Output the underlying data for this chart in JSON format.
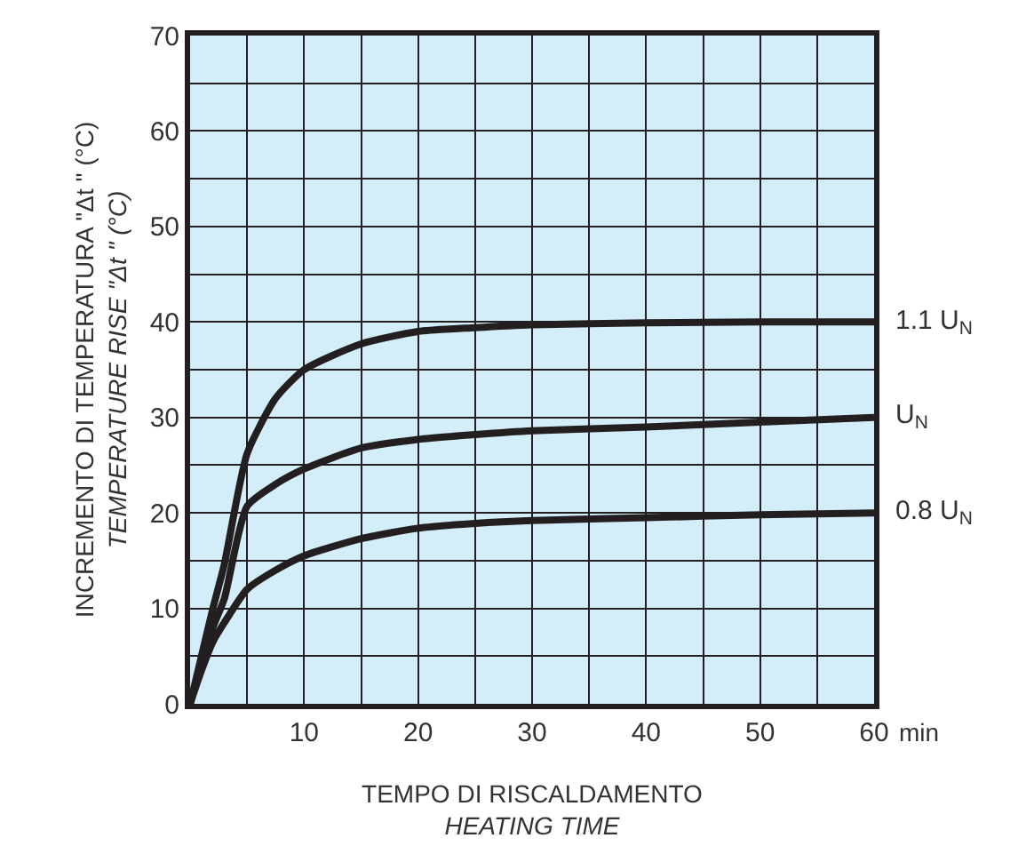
{
  "chart_data": {
    "type": "line",
    "xlabel": "TEMPO DI RISCALDAMENTO\nHEATING TIME",
    "ylabel": "INCREMENTO DI TEMPERATURA \"Δt \" (°C)\nTEMPERATURE RISE \"Δt \" (°C)",
    "x": [
      0,
      1,
      2,
      3,
      5,
      7.5,
      10,
      15,
      20,
      25,
      30,
      40,
      50,
      60
    ],
    "series": [
      {
        "name": "1.1 U$_{N}$",
        "color": "#231f20",
        "values": [
          0,
          5,
          10,
          14.6,
          26.2,
          32,
          35,
          37.7,
          39,
          39.4,
          39.7,
          39.9,
          40,
          40
        ]
      },
      {
        "name": "U$_{N}$",
        "color": "#231f20",
        "values": [
          0,
          4,
          8,
          11,
          20.7,
          23,
          24.6,
          26.8,
          27.7,
          28.2,
          28.6,
          29,
          29.5,
          30
        ]
      },
      {
        "name": "0.8 U$_{N}$",
        "color": "#231f20",
        "values": [
          0,
          3.5,
          6.5,
          8.5,
          12,
          14,
          15.5,
          17.3,
          18.4,
          18.9,
          19.2,
          19.5,
          19.8,
          20
        ]
      }
    ],
    "xlim": [
      0,
      60
    ],
    "xticks": [
      {
        "value": 0,
        "label": null
      },
      {
        "value": 5,
        "label": null
      },
      10,
      {
        "value": 15,
        "label": null
      },
      20,
      {
        "value": 25,
        "label": null
      },
      30,
      {
        "value": 35,
        "label": null
      },
      40,
      {
        "value": 45,
        "label": null
      },
      50,
      {
        "value": 55,
        "label": null
      },
      60
    ],
    "ylim": [
      0,
      70
    ],
    "yticks": [
      0,
      {
        "value": 5,
        "label": null
      },
      10,
      {
        "value": 15,
        "label": null
      },
      20,
      {
        "value": 25,
        "label": null
      },
      30,
      {
        "value": 35,
        "label": null
      },
      40,
      {
        "value": 45,
        "label": null
      },
      50,
      {
        "value": 55,
        "label": null
      },
      60,
      {
        "value": 65,
        "label": null
      },
      70
    ],
    "grid": true,
    "legend": false,
    "marker": "none",
    "line_style": "solid",
    "annotations": [
      "min"
    ]
  }
}
